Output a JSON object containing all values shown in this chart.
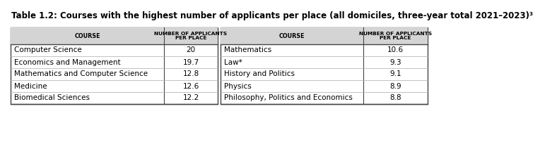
{
  "title": "Table 1.2: Courses with the highest number of applicants per place (all domiciles, three-year total 2021–2023)³",
  "left_courses": [
    "Computer Science",
    "Economics and Management",
    "Mathematics and Computer Science",
    "Medicine",
    "Biomedical Sciences"
  ],
  "left_values": [
    "20",
    "19.7",
    "12.8",
    "12.6",
    "12.2"
  ],
  "right_courses": [
    "Mathematics",
    "Law*",
    "History and Politics",
    "Physics",
    "Philosophy, Politics and Economics"
  ],
  "right_values": [
    "10.6",
    "9.3",
    "9.1",
    "8.9",
    "8.8"
  ],
  "col_header_course": "COURSE",
  "col_header_num": "NUMBER OF APPLICANTS\nPER PLACE",
  "header_bg": "#d4d4d4",
  "border_color": "#555555",
  "title_fontsize": 8.5,
  "header_fontsize": 5.8,
  "cell_fontsize": 7.5
}
